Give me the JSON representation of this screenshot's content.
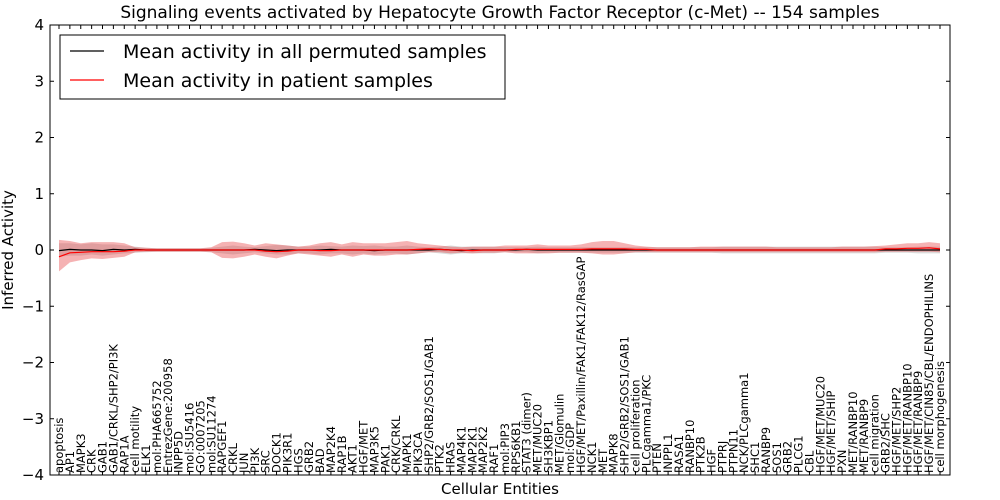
{
  "chart_data": {
    "type": "line",
    "title": "Signaling events activated by Hepatocyte Growth Factor Receptor (c-Met) -- 154 samples",
    "xlabel": "Cellular Entities",
    "ylabel": "Inferred Activity",
    "ylim": [
      -4,
      4
    ],
    "yticks": [
      -4,
      -3,
      -2,
      -1,
      0,
      1,
      2,
      3,
      4
    ],
    "ytick_labels": [
      "−4",
      "−3",
      "−2",
      "−1",
      "0",
      "1",
      "2",
      "3",
      "4"
    ],
    "legend_position": "top-left",
    "categories": [
      "apoptosis",
      "AP1",
      "MAPK3",
      "CRK",
      "GAB1",
      "GAB1/CRKL/SHP2/PI3K",
      "RAP1A",
      "cell motility",
      "ELK1",
      "mol:PHA665752",
      "EntrezGene:200958",
      "INPP5D",
      "mol:SU5416",
      "GO:0007205",
      "mol:SU11274",
      "RAPGEF1",
      "CRKL",
      "JUN",
      "PI3K",
      "SRC",
      "DOCK1",
      "PIK3R1",
      "HGS",
      "GRB2",
      "BAD",
      "MAP2K4",
      "RAP1B",
      "AKT1",
      "HGF/MET",
      "MAP3K5",
      "PAK1",
      "CRK/CRKL",
      "MAPK1",
      "PIK3CA",
      "SHP2/GRB2/SOS1/GAB1",
      "PTK2",
      "HRAS",
      "MAP4K1",
      "MAP2K1",
      "MAP2K2",
      "RAF1",
      "mol:PIP3",
      "RPS6KB1",
      "STAT3 (dimer)",
      "MET/MUC20",
      "SH3KBP1",
      "MET/Glomulin",
      "mol:GDP",
      "HGF/MET/Paxillin/FAK1/FAK12/RasGAP",
      "NCK1",
      "MET",
      "MAPK8",
      "SHP2/GRB2/SOS1/GAB1",
      "cell proliferation",
      "PLCgamma1/PKC",
      "PTEN",
      "INPPL1",
      "RASA1",
      "RANBP10",
      "PTK2B",
      "HGF",
      "PTPRJ",
      "PTPN11",
      "NCK/PLCgamma1",
      "SHC1",
      "RANBP9",
      "SOS1",
      "GRB2",
      "PLCG1",
      "CBL",
      "HGF/MET/MUC20",
      "HGF/MET/SHIP",
      "PXN",
      "MET/RANBP10",
      "MET/RANBP9",
      "cell migration",
      "GRB2/SHC",
      "HGF/MET/SHP2",
      "HGF/MET/RANBP10",
      "HGF/MET/RANBP9",
      "HGF/MET/CIN85/CBL/ENDOPHILINS",
      "cell morphogenesis"
    ],
    "series": [
      {
        "name": "Mean activity in all permuted samples",
        "color": "#000000",
        "values": [
          -0.01,
          0.01,
          0.0,
          0.0,
          -0.01,
          0.01,
          0.0,
          0.01,
          0.0,
          0.0,
          0.0,
          0.0,
          0.0,
          0.0,
          0.0,
          0.0,
          0.0,
          0.0,
          0.01,
          0.0,
          -0.01,
          0.0,
          0.0,
          0.0,
          0.0,
          0.01,
          0.0,
          0.0,
          0.0,
          -0.01,
          0.0,
          0.0,
          0.0,
          0.0,
          0.0,
          0.01,
          0.0,
          -0.01,
          0.0,
          0.0,
          0.0,
          0.0,
          0.0,
          0.01,
          0.0,
          0.0,
          0.0,
          0.0,
          0.0,
          0.0,
          0.0,
          0.0,
          0.0,
          0.0,
          0.0,
          0.0,
          0.0,
          0.0,
          0.0,
          0.0,
          0.0,
          0.0,
          0.0,
          0.0,
          0.0,
          0.0,
          0.0,
          0.0,
          0.0,
          0.0,
          0.0,
          0.0,
          0.0,
          0.0,
          0.0,
          0.0,
          0.0,
          0.0,
          0.0,
          0.0,
          0.0,
          0.0
        ],
        "band_low": [
          -0.12,
          -0.1,
          -0.1,
          -0.08,
          -0.1,
          -0.08,
          -0.06,
          -0.05,
          -0.04,
          -0.03,
          -0.03,
          -0.03,
          -0.03,
          -0.03,
          -0.04,
          -0.06,
          -0.08,
          -0.06,
          -0.04,
          -0.06,
          -0.08,
          -0.08,
          -0.06,
          -0.06,
          -0.08,
          -0.06,
          -0.06,
          -0.08,
          -0.06,
          -0.08,
          -0.06,
          -0.06,
          -0.08,
          -0.06,
          -0.04,
          -0.06,
          -0.08,
          -0.06,
          -0.06,
          -0.06,
          -0.06,
          -0.04,
          -0.04,
          -0.04,
          -0.06,
          -0.05,
          -0.05,
          -0.05,
          -0.05,
          -0.05,
          -0.05,
          -0.05,
          -0.05,
          -0.05,
          -0.05,
          -0.05,
          -0.05,
          -0.05,
          -0.05,
          -0.05,
          -0.05,
          -0.06,
          -0.06,
          -0.06,
          -0.06,
          -0.06,
          -0.06,
          -0.06,
          -0.06,
          -0.06,
          -0.06,
          -0.06,
          -0.06,
          -0.06,
          -0.06,
          -0.06,
          -0.05,
          -0.05,
          -0.05,
          -0.06,
          -0.06,
          -0.06
        ],
        "band_high": [
          0.12,
          0.12,
          0.1,
          0.12,
          0.1,
          0.1,
          0.08,
          0.06,
          0.04,
          0.03,
          0.03,
          0.03,
          0.03,
          0.03,
          0.04,
          0.06,
          0.08,
          0.06,
          0.05,
          0.07,
          0.09,
          0.08,
          0.06,
          0.06,
          0.08,
          0.07,
          0.06,
          0.08,
          0.07,
          0.08,
          0.06,
          0.06,
          0.08,
          0.06,
          0.05,
          0.06,
          0.08,
          0.06,
          0.06,
          0.06,
          0.06,
          0.05,
          0.05,
          0.05,
          0.06,
          0.05,
          0.05,
          0.05,
          0.05,
          0.05,
          0.05,
          0.05,
          0.05,
          0.05,
          0.05,
          0.05,
          0.05,
          0.05,
          0.05,
          0.05,
          0.05,
          0.06,
          0.06,
          0.06,
          0.06,
          0.06,
          0.06,
          0.06,
          0.06,
          0.06,
          0.06,
          0.06,
          0.06,
          0.06,
          0.06,
          0.06,
          0.05,
          0.05,
          0.05,
          0.06,
          0.06,
          0.06
        ]
      },
      {
        "name": "Mean activity in patient samples",
        "color": "#ff0000",
        "values": [
          -0.12,
          -0.05,
          -0.04,
          -0.03,
          -0.03,
          -0.03,
          -0.02,
          0.0,
          0.0,
          0.0,
          0.0,
          0.0,
          0.0,
          0.0,
          0.0,
          0.0,
          0.0,
          0.0,
          0.0,
          -0.02,
          -0.03,
          -0.02,
          0.0,
          0.0,
          -0.01,
          -0.01,
          0.0,
          0.0,
          0.0,
          0.0,
          0.0,
          0.0,
          0.0,
          0.01,
          0.02,
          0.01,
          0.0,
          0.0,
          -0.01,
          0.0,
          0.0,
          0.0,
          0.01,
          0.01,
          0.01,
          0.01,
          0.01,
          0.01,
          0.01,
          0.02,
          0.02,
          0.02,
          0.02,
          0.01,
          0.01,
          0.0,
          0.0,
          0.0,
          0.0,
          0.0,
          0.0,
          0.0,
          0.0,
          0.0,
          0.0,
          0.0,
          0.0,
          0.0,
          0.0,
          0.0,
          0.0,
          0.0,
          0.0,
          0.0,
          0.0,
          0.0,
          0.02,
          0.02,
          0.03,
          0.03,
          0.04,
          0.02
        ],
        "band_low": [
          -0.38,
          -0.22,
          -0.18,
          -0.15,
          -0.16,
          -0.14,
          -0.12,
          -0.04,
          -0.03,
          -0.03,
          -0.03,
          -0.03,
          -0.03,
          -0.03,
          -0.04,
          -0.14,
          -0.15,
          -0.12,
          -0.08,
          -0.12,
          -0.15,
          -0.1,
          -0.06,
          -0.08,
          -0.1,
          -0.12,
          -0.08,
          -0.12,
          -0.08,
          -0.1,
          -0.1,
          -0.08,
          -0.08,
          -0.06,
          -0.04,
          -0.04,
          -0.06,
          -0.05,
          -0.06,
          -0.05,
          -0.05,
          -0.04,
          -0.06,
          -0.06,
          -0.06,
          -0.06,
          -0.05,
          -0.05,
          -0.05,
          -0.06,
          -0.08,
          -0.08,
          -0.06,
          -0.04,
          -0.04,
          -0.04,
          -0.04,
          -0.04,
          -0.04,
          -0.04,
          -0.04,
          -0.04,
          -0.04,
          -0.04,
          -0.04,
          -0.04,
          -0.04,
          -0.04,
          -0.04,
          -0.04,
          -0.04,
          -0.04,
          -0.04,
          -0.04,
          -0.04,
          -0.04,
          -0.03,
          -0.03,
          -0.03,
          -0.03,
          -0.03,
          -0.04
        ],
        "band_high": [
          0.18,
          0.16,
          0.12,
          0.14,
          0.14,
          0.14,
          0.12,
          0.05,
          0.04,
          0.03,
          0.03,
          0.03,
          0.03,
          0.03,
          0.05,
          0.14,
          0.15,
          0.12,
          0.08,
          0.12,
          0.1,
          0.08,
          0.06,
          0.08,
          0.12,
          0.14,
          0.1,
          0.14,
          0.12,
          0.12,
          0.12,
          0.14,
          0.16,
          0.12,
          0.1,
          0.08,
          0.06,
          0.05,
          0.06,
          0.06,
          0.06,
          0.08,
          0.08,
          0.08,
          0.1,
          0.08,
          0.08,
          0.08,
          0.1,
          0.14,
          0.16,
          0.16,
          0.12,
          0.08,
          0.06,
          0.05,
          0.05,
          0.05,
          0.05,
          0.06,
          0.06,
          0.06,
          0.06,
          0.06,
          0.06,
          0.06,
          0.05,
          0.05,
          0.05,
          0.05,
          0.05,
          0.05,
          0.06,
          0.06,
          0.06,
          0.07,
          0.08,
          0.1,
          0.12,
          0.12,
          0.14,
          0.12
        ]
      }
    ]
  }
}
